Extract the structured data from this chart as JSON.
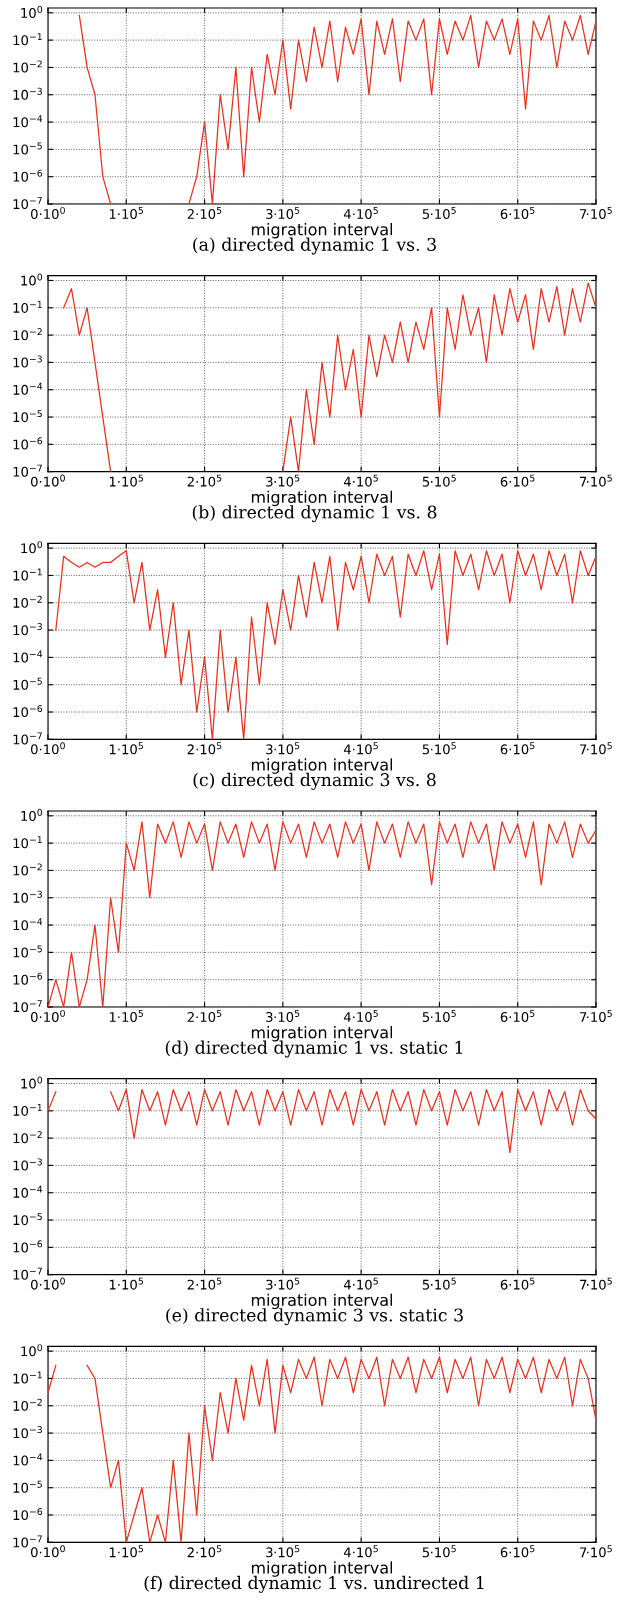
{
  "chart_data": [
    {
      "type": "line",
      "title": "(a) directed dynamic 1 vs. 3",
      "xlabel": "migration interval",
      "log": "y",
      "grid": true,
      "xlim": [
        0,
        700000
      ],
      "ylim": [
        1e-07,
        1.5
      ],
      "xticks": [
        {
          "value": 0,
          "label": "0·10$^{0}$"
        },
        {
          "value": 100000,
          "label": "1·10$^{5}$"
        },
        {
          "value": 200000,
          "label": "2·10$^{5}$"
        },
        {
          "value": 300000,
          "label": "3·10$^{5}$"
        },
        {
          "value": 400000,
          "label": "4·10$^{5}$"
        },
        {
          "value": 500000,
          "label": "5·10$^{5}$"
        },
        {
          "value": 600000,
          "label": "6·10$^{5}$"
        },
        {
          "value": 700000,
          "label": "7·10$^{5}$"
        }
      ],
      "yticks": [
        {
          "value": 1,
          "label": "10$^{0}$"
        },
        {
          "value": 0.1,
          "label": "10$^{−1}$"
        },
        {
          "value": 0.01,
          "label": "10$^{−2}$"
        },
        {
          "value": 0.001,
          "label": "10$^{−3}$"
        },
        {
          "value": 0.0001,
          "label": "10$^{−4}$"
        },
        {
          "value": 1e-05,
          "label": "10$^{−5}$"
        },
        {
          "value": 1e-06,
          "label": "10$^{−6}$"
        },
        {
          "value": 1e-07,
          "label": "10$^{−7}$"
        }
      ],
      "series": [
        {
          "color": "#e8301f",
          "x": [
            40000,
            50000,
            60000,
            70000,
            80000,
            90000,
            100000,
            110000,
            120000,
            130000,
            140000,
            150000,
            160000,
            170000,
            180000,
            190000,
            200000,
            210000,
            220000,
            230000,
            240000,
            250000,
            260000,
            270000,
            280000,
            290000,
            300000,
            310000,
            320000,
            330000,
            340000,
            350000,
            360000,
            370000,
            380000,
            390000,
            400000,
            410000,
            420000,
            430000,
            440000,
            450000,
            460000,
            470000,
            480000,
            490000,
            500000,
            510000,
            520000,
            530000,
            540000,
            550000,
            560000,
            570000,
            580000,
            590000,
            600000,
            610000,
            620000,
            630000,
            640000,
            650000,
            660000,
            670000,
            680000,
            690000,
            700000
          ],
          "values": [
            0.8,
            0.01,
            0.001,
            1e-06,
            1e-07,
            null,
            null,
            null,
            null,
            null,
            null,
            null,
            null,
            null,
            1e-07,
            1e-06,
            0.0001,
            1e-07,
            0.001,
            1e-05,
            0.01,
            1e-06,
            0.01,
            0.0001,
            0.03,
            0.001,
            0.1,
            0.0003,
            0.1,
            0.003,
            0.3,
            0.01,
            0.5,
            0.003,
            0.3,
            0.03,
            0.6,
            0.001,
            0.5,
            0.03,
            0.6,
            0.003,
            0.5,
            0.1,
            0.6,
            0.001,
            0.6,
            0.03,
            0.5,
            0.1,
            0.8,
            0.01,
            0.5,
            0.1,
            0.6,
            0.03,
            0.6,
            0.0003,
            0.5,
            0.1,
            0.8,
            0.01,
            0.5,
            0.1,
            0.8,
            0.03,
            0.5
          ]
        }
      ]
    },
    {
      "type": "line",
      "title": "(b) directed dynamic 1 vs. 8",
      "xlabel": "migration interval",
      "log": "y",
      "grid": true,
      "xlim": [
        0,
        700000
      ],
      "ylim": [
        1e-07,
        1.5
      ],
      "xticks": [
        {
          "value": 0,
          "label": "0·10$^{0}$"
        },
        {
          "value": 100000,
          "label": "1·10$^{5}$"
        },
        {
          "value": 200000,
          "label": "2·10$^{5}$"
        },
        {
          "value": 300000,
          "label": "3·10$^{5}$"
        },
        {
          "value": 400000,
          "label": "4·10$^{5}$"
        },
        {
          "value": 500000,
          "label": "5·10$^{5}$"
        },
        {
          "value": 600000,
          "label": "6·10$^{5}$"
        },
        {
          "value": 700000,
          "label": "7·10$^{5}$"
        }
      ],
      "yticks": [
        {
          "value": 1,
          "label": "10$^{0}$"
        },
        {
          "value": 0.1,
          "label": "10$^{−1}$"
        },
        {
          "value": 0.01,
          "label": "10$^{−2}$"
        },
        {
          "value": 0.001,
          "label": "10$^{−3}$"
        },
        {
          "value": 0.0001,
          "label": "10$^{−4}$"
        },
        {
          "value": 1e-05,
          "label": "10$^{−5}$"
        },
        {
          "value": 1e-06,
          "label": "10$^{−6}$"
        },
        {
          "value": 1e-07,
          "label": "10$^{−7}$"
        }
      ],
      "series": [
        {
          "color": "#e8301f",
          "x": [
            20000,
            30000,
            40000,
            50000,
            60000,
            70000,
            80000,
            90000,
            100000,
            110000,
            120000,
            130000,
            140000,
            150000,
            160000,
            170000,
            180000,
            190000,
            200000,
            210000,
            220000,
            230000,
            240000,
            250000,
            260000,
            270000,
            280000,
            290000,
            300000,
            310000,
            320000,
            330000,
            340000,
            350000,
            360000,
            370000,
            380000,
            390000,
            400000,
            410000,
            420000,
            430000,
            440000,
            450000,
            460000,
            470000,
            480000,
            490000,
            500000,
            510000,
            520000,
            530000,
            540000,
            550000,
            560000,
            570000,
            580000,
            590000,
            600000,
            610000,
            620000,
            630000,
            640000,
            650000,
            660000,
            670000,
            680000,
            690000,
            700000
          ],
          "values": [
            0.1,
            0.5,
            0.01,
            0.1,
            0.001,
            1e-05,
            1e-07,
            null,
            null,
            null,
            null,
            null,
            null,
            null,
            null,
            null,
            null,
            null,
            null,
            null,
            null,
            null,
            null,
            null,
            null,
            null,
            null,
            null,
            1e-07,
            1e-05,
            1e-07,
            0.0001,
            1e-06,
            0.001,
            1e-05,
            0.01,
            0.0001,
            0.003,
            1e-05,
            0.01,
            0.0003,
            0.01,
            0.001,
            0.03,
            0.001,
            0.03,
            0.003,
            0.1,
            1e-05,
            0.1,
            0.003,
            0.3,
            0.01,
            0.1,
            0.001,
            0.3,
            0.01,
            0.5,
            0.03,
            0.3,
            0.003,
            0.5,
            0.03,
            0.6,
            0.01,
            0.5,
            0.03,
            0.8,
            0.1
          ]
        }
      ]
    },
    {
      "type": "line",
      "title": "(c) directed dynamic 3 vs. 8",
      "xlabel": "migration interval",
      "log": "y",
      "grid": true,
      "xlim": [
        0,
        700000
      ],
      "ylim": [
        1e-07,
        1.5
      ],
      "xticks": [
        {
          "value": 0,
          "label": "0·10$^{0}$"
        },
        {
          "value": 100000,
          "label": "1·10$^{5}$"
        },
        {
          "value": 200000,
          "label": "2·10$^{5}$"
        },
        {
          "value": 300000,
          "label": "3·10$^{5}$"
        },
        {
          "value": 400000,
          "label": "4·10$^{5}$"
        },
        {
          "value": 500000,
          "label": "5·10$^{5}$"
        },
        {
          "value": 600000,
          "label": "6·10$^{5}$"
        },
        {
          "value": 700000,
          "label": "7·10$^{5}$"
        }
      ],
      "yticks": [
        {
          "value": 1,
          "label": "10$^{0}$"
        },
        {
          "value": 0.1,
          "label": "10$^{−1}$"
        },
        {
          "value": 0.01,
          "label": "10$^{−2}$"
        },
        {
          "value": 0.001,
          "label": "10$^{−3}$"
        },
        {
          "value": 0.0001,
          "label": "10$^{−4}$"
        },
        {
          "value": 1e-05,
          "label": "10$^{−5}$"
        },
        {
          "value": 1e-06,
          "label": "10$^{−6}$"
        },
        {
          "value": 1e-07,
          "label": "10$^{−7}$"
        }
      ],
      "series": [
        {
          "color": "#e8301f",
          "x": [
            10000,
            20000,
            30000,
            40000,
            50000,
            60000,
            70000,
            80000,
            90000,
            100000,
            110000,
            120000,
            130000,
            140000,
            150000,
            160000,
            170000,
            180000,
            190000,
            200000,
            210000,
            220000,
            230000,
            240000,
            250000,
            260000,
            270000,
            280000,
            290000,
            300000,
            310000,
            320000,
            330000,
            340000,
            350000,
            360000,
            370000,
            380000,
            390000,
            400000,
            410000,
            420000,
            430000,
            440000,
            450000,
            460000,
            470000,
            480000,
            490000,
            500000,
            510000,
            520000,
            530000,
            540000,
            550000,
            560000,
            570000,
            580000,
            590000,
            600000,
            610000,
            620000,
            630000,
            640000,
            650000,
            660000,
            670000,
            680000,
            690000,
            700000
          ],
          "values": [
            0.001,
            0.5,
            0.3,
            0.2,
            0.3,
            0.2,
            0.3,
            0.3,
            0.5,
            0.8,
            0.01,
            0.3,
            0.001,
            0.03,
            0.0001,
            0.01,
            1e-05,
            0.001,
            1e-06,
            0.0001,
            1e-07,
            0.001,
            1e-06,
            0.0001,
            1e-07,
            0.003,
            1e-05,
            0.01,
            0.0003,
            0.03,
            0.001,
            0.1,
            0.003,
            0.3,
            0.01,
            0.5,
            0.001,
            0.3,
            0.03,
            0.5,
            0.01,
            0.6,
            0.1,
            0.5,
            0.003,
            0.6,
            0.1,
            0.8,
            0.03,
            0.6,
            0.0003,
            0.8,
            0.1,
            0.6,
            0.03,
            0.8,
            0.1,
            0.6,
            0.01,
            0.8,
            0.1,
            0.6,
            0.03,
            0.8,
            0.1,
            0.6,
            0.01,
            0.8,
            0.1,
            0.5
          ]
        }
      ]
    },
    {
      "type": "line",
      "title": "(d) directed dynamic 1 vs. static 1",
      "xlabel": "migration interval",
      "log": "y",
      "grid": true,
      "xlim": [
        0,
        700000
      ],
      "ylim": [
        1e-07,
        1.5
      ],
      "xticks": [
        {
          "value": 0,
          "label": "0·10$^{0}$"
        },
        {
          "value": 100000,
          "label": "1·10$^{5}$"
        },
        {
          "value": 200000,
          "label": "2·10$^{5}$"
        },
        {
          "value": 300000,
          "label": "3·10$^{5}$"
        },
        {
          "value": 400000,
          "label": "4·10$^{5}$"
        },
        {
          "value": 500000,
          "label": "5·10$^{5}$"
        },
        {
          "value": 600000,
          "label": "6·10$^{5}$"
        },
        {
          "value": 700000,
          "label": "7·10$^{5}$"
        }
      ],
      "yticks": [
        {
          "value": 1,
          "label": "10$^{0}$"
        },
        {
          "value": 0.1,
          "label": "10$^{−1}$"
        },
        {
          "value": 0.01,
          "label": "10$^{−2}$"
        },
        {
          "value": 0.001,
          "label": "10$^{−3}$"
        },
        {
          "value": 0.0001,
          "label": "10$^{−4}$"
        },
        {
          "value": 1e-05,
          "label": "10$^{−5}$"
        },
        {
          "value": 1e-06,
          "label": "10$^{−6}$"
        },
        {
          "value": 1e-07,
          "label": "10$^{−7}$"
        }
      ],
      "series": [
        {
          "color": "#e8301f",
          "x": [
            0,
            10000,
            20000,
            30000,
            40000,
            50000,
            60000,
            70000,
            80000,
            90000,
            100000,
            110000,
            120000,
            130000,
            140000,
            150000,
            160000,
            170000,
            180000,
            190000,
            200000,
            210000,
            220000,
            230000,
            240000,
            250000,
            260000,
            270000,
            280000,
            290000,
            300000,
            310000,
            320000,
            330000,
            340000,
            350000,
            360000,
            370000,
            380000,
            390000,
            400000,
            410000,
            420000,
            430000,
            440000,
            450000,
            460000,
            470000,
            480000,
            490000,
            500000,
            510000,
            520000,
            530000,
            540000,
            550000,
            560000,
            570000,
            580000,
            590000,
            600000,
            610000,
            620000,
            630000,
            640000,
            650000,
            660000,
            670000,
            680000,
            690000,
            700000
          ],
          "values": [
            1e-07,
            1e-06,
            1e-07,
            1e-05,
            1e-07,
            1e-06,
            0.0001,
            1e-07,
            0.001,
            1e-05,
            0.1,
            0.01,
            0.6,
            0.001,
            0.5,
            0.1,
            0.6,
            0.03,
            0.6,
            0.1,
            0.5,
            0.01,
            0.6,
            0.1,
            0.5,
            0.03,
            0.6,
            0.1,
            0.5,
            0.01,
            0.6,
            0.1,
            0.5,
            0.03,
            0.6,
            0.1,
            0.5,
            0.03,
            0.6,
            0.1,
            0.5,
            0.01,
            0.6,
            0.1,
            0.5,
            0.03,
            0.6,
            0.1,
            0.5,
            0.003,
            0.6,
            0.1,
            0.5,
            0.03,
            0.6,
            0.1,
            0.5,
            0.01,
            0.6,
            0.1,
            0.5,
            0.03,
            0.6,
            0.003,
            0.5,
            0.1,
            0.6,
            0.03,
            0.5,
            0.1,
            0.3
          ]
        }
      ]
    },
    {
      "type": "line",
      "title": "(e) directed dynamic 3 vs. static 3",
      "xlabel": "migration interval",
      "log": "y",
      "grid": true,
      "xlim": [
        0,
        700000
      ],
      "ylim": [
        1e-07,
        1.5
      ],
      "xticks": [
        {
          "value": 0,
          "label": "0·10$^{0}$"
        },
        {
          "value": 100000,
          "label": "1·10$^{5}$"
        },
        {
          "value": 200000,
          "label": "2·10$^{5}$"
        },
        {
          "value": 300000,
          "label": "3·10$^{5}$"
        },
        {
          "value": 400000,
          "label": "4·10$^{5}$"
        },
        {
          "value": 500000,
          "label": "5·10$^{5}$"
        },
        {
          "value": 600000,
          "label": "6·10$^{5}$"
        },
        {
          "value": 700000,
          "label": "7·10$^{5}$"
        }
      ],
      "yticks": [
        {
          "value": 1,
          "label": "10$^{0}$"
        },
        {
          "value": 0.1,
          "label": "10$^{−1}$"
        },
        {
          "value": 0.01,
          "label": "10$^{−2}$"
        },
        {
          "value": 0.001,
          "label": "10$^{−3}$"
        },
        {
          "value": 0.0001,
          "label": "10$^{−4}$"
        },
        {
          "value": 1e-05,
          "label": "10$^{−5}$"
        },
        {
          "value": 1e-06,
          "label": "10$^{−6}$"
        },
        {
          "value": 1e-07,
          "label": "10$^{−7}$"
        }
      ],
      "series": [
        {
          "color": "#e8301f",
          "x": [
            0,
            10000,
            20000,
            30000,
            40000,
            50000,
            60000,
            70000,
            80000,
            90000,
            100000,
            110000,
            120000,
            130000,
            140000,
            150000,
            160000,
            170000,
            180000,
            190000,
            200000,
            210000,
            220000,
            230000,
            240000,
            250000,
            260000,
            270000,
            280000,
            290000,
            300000,
            310000,
            320000,
            330000,
            340000,
            350000,
            360000,
            370000,
            380000,
            390000,
            400000,
            410000,
            420000,
            430000,
            440000,
            450000,
            460000,
            470000,
            480000,
            490000,
            500000,
            510000,
            520000,
            530000,
            540000,
            550000,
            560000,
            570000,
            580000,
            590000,
            600000,
            610000,
            620000,
            630000,
            640000,
            650000,
            660000,
            670000,
            680000,
            690000,
            700000
          ],
          "values": [
            0.1,
            0.5,
            null,
            null,
            null,
            null,
            null,
            null,
            0.5,
            0.1,
            0.6,
            0.01,
            0.6,
            0.1,
            0.5,
            0.03,
            0.6,
            0.1,
            0.5,
            0.03,
            0.6,
            0.1,
            0.5,
            0.03,
            0.6,
            0.1,
            0.5,
            0.03,
            0.6,
            0.1,
            0.5,
            0.03,
            0.6,
            0.1,
            0.5,
            0.03,
            0.6,
            0.1,
            0.5,
            0.03,
            0.6,
            0.1,
            0.5,
            0.03,
            0.6,
            0.1,
            0.5,
            0.03,
            0.6,
            0.1,
            0.5,
            0.03,
            0.6,
            0.1,
            0.5,
            0.03,
            0.6,
            0.1,
            0.5,
            0.003,
            0.6,
            0.1,
            0.5,
            0.03,
            0.6,
            0.1,
            0.5,
            0.03,
            0.6,
            0.1,
            0.05
          ]
        }
      ]
    },
    {
      "type": "line",
      "title": "(f) directed dynamic 1 vs. undirected 1",
      "xlabel": "migration interval",
      "log": "y",
      "grid": true,
      "xlim": [
        0,
        700000
      ],
      "ylim": [
        1e-07,
        1.5
      ],
      "xticks": [
        {
          "value": 0,
          "label": "0·10$^{0}$"
        },
        {
          "value": 100000,
          "label": "1·10$^{5}$"
        },
        {
          "value": 200000,
          "label": "2·10$^{5}$"
        },
        {
          "value": 300000,
          "label": "3·10$^{5}$"
        },
        {
          "value": 400000,
          "label": "4·10$^{5}$"
        },
        {
          "value": 500000,
          "label": "5·10$^{5}$"
        },
        {
          "value": 600000,
          "label": "6·10$^{5}$"
        },
        {
          "value": 700000,
          "label": "7·10$^{5}$"
        }
      ],
      "yticks": [
        {
          "value": 1,
          "label": "10$^{0}$"
        },
        {
          "value": 0.1,
          "label": "10$^{−1}$"
        },
        {
          "value": 0.01,
          "label": "10$^{−2}$"
        },
        {
          "value": 0.001,
          "label": "10$^{−3}$"
        },
        {
          "value": 0.0001,
          "label": "10$^{−4}$"
        },
        {
          "value": 1e-05,
          "label": "10$^{−5}$"
        },
        {
          "value": 1e-06,
          "label": "10$^{−6}$"
        },
        {
          "value": 1e-07,
          "label": "10$^{−7}$"
        }
      ],
      "series": [
        {
          "color": "#e8301f",
          "x": [
            0,
            10000,
            20000,
            30000,
            40000,
            50000,
            60000,
            70000,
            80000,
            90000,
            100000,
            110000,
            120000,
            130000,
            140000,
            150000,
            160000,
            170000,
            180000,
            190000,
            200000,
            210000,
            220000,
            230000,
            240000,
            250000,
            260000,
            270000,
            280000,
            290000,
            300000,
            310000,
            320000,
            330000,
            340000,
            350000,
            360000,
            370000,
            380000,
            390000,
            400000,
            410000,
            420000,
            430000,
            440000,
            450000,
            460000,
            470000,
            480000,
            490000,
            500000,
            510000,
            520000,
            530000,
            540000,
            550000,
            560000,
            570000,
            580000,
            590000,
            600000,
            610000,
            620000,
            630000,
            640000,
            650000,
            660000,
            670000,
            680000,
            690000,
            700000
          ],
          "values": [
            0.03,
            0.3,
            null,
            null,
            null,
            0.3,
            0.1,
            0.001,
            1e-05,
            0.0001,
            1e-07,
            1e-06,
            1e-05,
            1e-07,
            1e-06,
            1e-07,
            0.0001,
            1e-07,
            0.001,
            1e-06,
            0.01,
            0.0001,
            0.03,
            0.001,
            0.1,
            0.003,
            0.3,
            0.01,
            0.5,
            0.001,
            0.3,
            0.03,
            0.5,
            0.1,
            0.6,
            0.01,
            0.5,
            0.1,
            0.6,
            0.03,
            0.5,
            0.1,
            0.6,
            0.01,
            0.5,
            0.1,
            0.6,
            0.03,
            0.5,
            0.1,
            0.6,
            0.03,
            0.5,
            0.1,
            0.6,
            0.01,
            0.5,
            0.1,
            0.6,
            0.03,
            0.5,
            0.1,
            0.6,
            0.03,
            0.5,
            0.1,
            0.6,
            0.01,
            0.5,
            0.1,
            0.003
          ]
        }
      ]
    }
  ]
}
